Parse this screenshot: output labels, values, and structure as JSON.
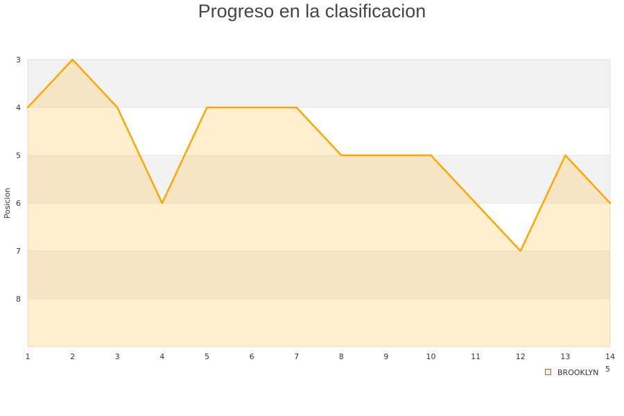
{
  "chart_data": {
    "type": "area",
    "title": "Progreso en la clasificacion",
    "xlabel": "",
    "ylabel": "Posicion",
    "x": [
      1,
      2,
      3,
      4,
      5,
      6,
      7,
      8,
      9,
      10,
      11,
      12,
      13,
      14
    ],
    "series": [
      {
        "name": "BROOKLYN",
        "values": [
          4,
          3,
          4,
          6,
          4,
          4,
          4,
          5,
          5,
          5,
          6,
          7,
          5,
          6
        ]
      }
    ],
    "xlim": [
      1,
      14
    ],
    "ylim": [
      3,
      9
    ],
    "y_reversed": true,
    "y_ticks": [
      3,
      4,
      5,
      6,
      7,
      8
    ],
    "x_ticks": [
      1,
      2,
      3,
      4,
      5,
      6,
      7,
      8,
      9,
      10,
      11,
      12,
      13,
      14
    ],
    "grid": true,
    "alternating_bands": true,
    "legend": "bottom-right",
    "legend_extra": "5",
    "colors": {
      "line": "#ffa500",
      "fill": "#ffbe3c",
      "band": "#f2f2f2",
      "axis": "#dddddd"
    }
  }
}
